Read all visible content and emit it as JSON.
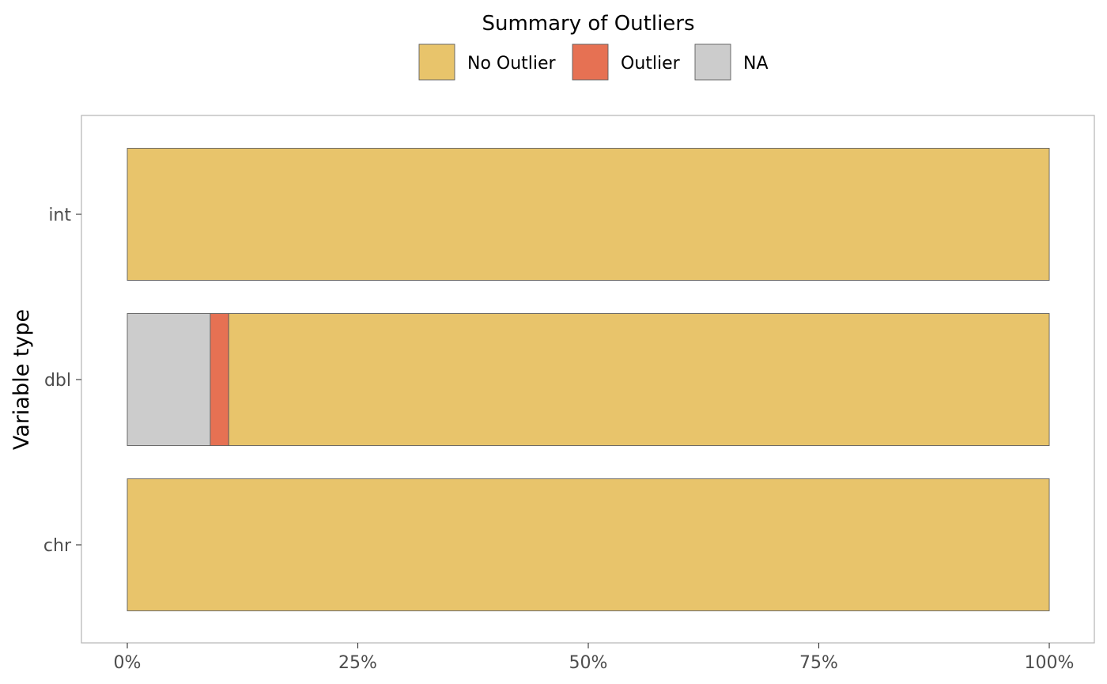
{
  "chart_data": {
    "type": "bar",
    "orientation": "horizontal",
    "stacked": true,
    "legend_title": "Summary of Outliers",
    "legend_position": "top",
    "xlabel": "",
    "ylabel": "Variable type",
    "xlim": [
      0,
      1
    ],
    "x_ticks": [
      {
        "value": 0,
        "label": "0%"
      },
      {
        "value": 0.25,
        "label": "25%"
      },
      {
        "value": 0.5,
        "label": "50%"
      },
      {
        "value": 0.75,
        "label": "75%"
      },
      {
        "value": 1,
        "label": "100%"
      }
    ],
    "categories": [
      "int",
      "dbl",
      "chr"
    ],
    "series": [
      {
        "name": "NA",
        "color": "#cccccc",
        "values": [
          0,
          0.09,
          0
        ]
      },
      {
        "name": "Outlier",
        "color": "#e67153",
        "values": [
          0,
          0.02,
          0
        ]
      },
      {
        "name": "No Outlier",
        "color": "#e8c46b",
        "values": [
          1,
          0.89,
          1
        ]
      }
    ],
    "legend_order": [
      "No Outlier",
      "Outlier",
      "NA"
    ],
    "grid": false
  }
}
